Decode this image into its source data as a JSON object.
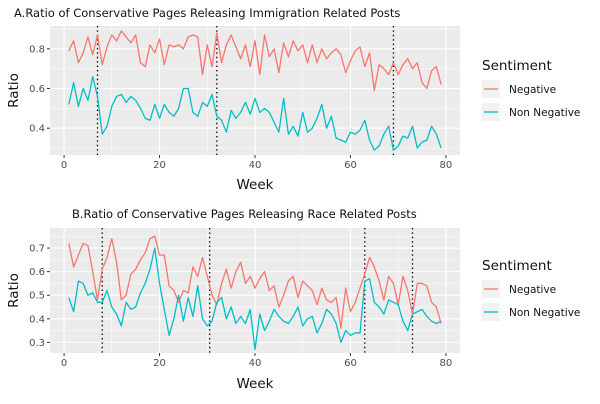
{
  "chart_data": [
    {
      "type": "line",
      "title": "A.Ratio of Conservative Pages Releasing Immigration Related Posts",
      "xlabel": "Week",
      "ylabel": "Ratio",
      "xlim": [
        -2.95,
        82.95
      ],
      "ylim": [
        0.265,
        0.915
      ],
      "x_ticks": [
        0,
        20,
        40,
        60,
        80
      ],
      "y_ticks": [
        0.4,
        0.6,
        0.8
      ],
      "y_tick_labels": [
        "0.4",
        "0.6",
        "0.8"
      ],
      "x_tick_labels": [
        "0",
        "20",
        "40",
        "60",
        "80"
      ],
      "vlines": [
        7,
        32,
        69
      ],
      "grid": true,
      "legend": {
        "title": "Sentiment",
        "placement": "right"
      },
      "x": [
        1,
        2,
        3,
        4,
        5,
        6,
        7,
        8,
        9,
        10,
        11,
        12,
        13,
        14,
        15,
        16,
        17,
        18,
        19,
        20,
        21,
        22,
        23,
        24,
        25,
        26,
        27,
        28,
        29,
        30,
        31,
        32,
        33,
        34,
        35,
        36,
        37,
        38,
        39,
        40,
        41,
        42,
        43,
        44,
        45,
        46,
        47,
        48,
        49,
        50,
        51,
        52,
        53,
        54,
        55,
        56,
        57,
        58,
        59,
        60,
        61,
        62,
        63,
        64,
        65,
        66,
        67,
        68,
        69,
        70,
        71,
        72,
        73,
        74,
        75,
        76,
        77,
        78,
        79
      ],
      "series": [
        {
          "name": "Negative",
          "color": "#F8766D",
          "values": [
            0.79,
            0.84,
            0.73,
            0.78,
            0.86,
            0.77,
            0.87,
            0.72,
            0.81,
            0.87,
            0.84,
            0.89,
            0.86,
            0.83,
            0.87,
            0.73,
            0.71,
            0.82,
            0.78,
            0.85,
            0.72,
            0.82,
            0.81,
            0.82,
            0.8,
            0.86,
            0.87,
            0.86,
            0.67,
            0.82,
            0.71,
            0.88,
            0.73,
            0.82,
            0.87,
            0.81,
            0.75,
            0.82,
            0.71,
            0.84,
            0.67,
            0.87,
            0.76,
            0.8,
            0.68,
            0.83,
            0.76,
            0.84,
            0.79,
            0.82,
            0.73,
            0.82,
            0.73,
            0.8,
            0.75,
            0.78,
            0.8,
            0.77,
            0.68,
            0.74,
            0.79,
            0.81,
            0.71,
            0.78,
            0.59,
            0.72,
            0.7,
            0.67,
            0.73,
            0.67,
            0.72,
            0.75,
            0.7,
            0.73,
            0.63,
            0.6,
            0.69,
            0.71,
            0.62
          ]
        },
        {
          "name": "Non Negative",
          "color": "#00BFC4",
          "values": [
            0.52,
            0.63,
            0.51,
            0.6,
            0.54,
            0.66,
            0.56,
            0.37,
            0.41,
            0.51,
            0.56,
            0.57,
            0.53,
            0.56,
            0.54,
            0.5,
            0.45,
            0.44,
            0.52,
            0.45,
            0.52,
            0.48,
            0.46,
            0.5,
            0.6,
            0.6,
            0.48,
            0.46,
            0.53,
            0.51,
            0.57,
            0.46,
            0.44,
            0.38,
            0.49,
            0.45,
            0.48,
            0.53,
            0.47,
            0.55,
            0.48,
            0.5,
            0.48,
            0.43,
            0.38,
            0.55,
            0.37,
            0.41,
            0.36,
            0.48,
            0.38,
            0.4,
            0.45,
            0.52,
            0.4,
            0.46,
            0.35,
            0.34,
            0.33,
            0.38,
            0.37,
            0.39,
            0.44,
            0.34,
            0.29,
            0.31,
            0.37,
            0.41,
            0.29,
            0.31,
            0.36,
            0.35,
            0.41,
            0.3,
            0.33,
            0.34,
            0.41,
            0.37,
            0.3
          ]
        }
      ]
    },
    {
      "type": "line",
      "title": "B.Ratio of Conservative Pages Releasing Race Related Posts",
      "xlabel": "Week",
      "ylabel": "Ratio",
      "xlim": [
        -2.95,
        82.95
      ],
      "ylim": [
        0.255,
        0.785
      ],
      "x_ticks": [
        0,
        20,
        40,
        60,
        80
      ],
      "y_ticks": [
        0.3,
        0.4,
        0.5,
        0.6,
        0.7
      ],
      "y_tick_labels": [
        "0.3",
        "0.4",
        "0.5",
        "0.6",
        "0.7"
      ],
      "x_tick_labels": [
        "0",
        "20",
        "40",
        "60",
        "80"
      ],
      "vlines": [
        8,
        30.5,
        63,
        73
      ],
      "grid": true,
      "legend": {
        "title": "Sentiment",
        "placement": "right"
      },
      "x": [
        1,
        2,
        3,
        4,
        5,
        6,
        7,
        8,
        9,
        10,
        11,
        12,
        13,
        14,
        15,
        16,
        17,
        18,
        19,
        20,
        21,
        22,
        23,
        24,
        25,
        26,
        27,
        28,
        29,
        30,
        31,
        32,
        33,
        34,
        35,
        36,
        37,
        38,
        39,
        40,
        41,
        42,
        43,
        44,
        45,
        46,
        47,
        48,
        49,
        50,
        51,
        52,
        53,
        54,
        55,
        56,
        57,
        58,
        59,
        60,
        61,
        62,
        63,
        64,
        65,
        66,
        67,
        68,
        69,
        70,
        71,
        72,
        73,
        74,
        75,
        76,
        77,
        78,
        79
      ],
      "series": [
        {
          "name": "Negative",
          "color": "#F8766D",
          "values": [
            0.72,
            0.62,
            0.67,
            0.72,
            0.71,
            0.6,
            0.48,
            0.61,
            0.66,
            0.74,
            0.64,
            0.48,
            0.5,
            0.59,
            0.61,
            0.65,
            0.68,
            0.74,
            0.75,
            0.67,
            0.67,
            0.54,
            0.52,
            0.47,
            0.52,
            0.51,
            0.62,
            0.58,
            0.66,
            0.58,
            0.5,
            0.46,
            0.55,
            0.61,
            0.53,
            0.6,
            0.64,
            0.55,
            0.58,
            0.53,
            0.57,
            0.6,
            0.52,
            0.54,
            0.45,
            0.5,
            0.56,
            0.58,
            0.49,
            0.56,
            0.54,
            0.52,
            0.46,
            0.53,
            0.48,
            0.47,
            0.49,
            0.36,
            0.53,
            0.43,
            0.47,
            0.53,
            0.59,
            0.66,
            0.62,
            0.56,
            0.48,
            0.58,
            0.55,
            0.46,
            0.58,
            0.52,
            0.42,
            0.55,
            0.55,
            0.54,
            0.47,
            0.45,
            0.38
          ]
        },
        {
          "name": "Non Negative",
          "color": "#00BFC4",
          "values": [
            0.49,
            0.43,
            0.56,
            0.55,
            0.5,
            0.51,
            0.47,
            0.47,
            0.52,
            0.45,
            0.42,
            0.37,
            0.47,
            0.44,
            0.45,
            0.51,
            0.55,
            0.61,
            0.7,
            0.55,
            0.44,
            0.33,
            0.4,
            0.5,
            0.39,
            0.49,
            0.41,
            0.54,
            0.4,
            0.37,
            0.39,
            0.47,
            0.49,
            0.4,
            0.45,
            0.38,
            0.41,
            0.38,
            0.44,
            0.27,
            0.42,
            0.35,
            0.39,
            0.44,
            0.41,
            0.39,
            0.38,
            0.41,
            0.45,
            0.37,
            0.4,
            0.41,
            0.34,
            0.38,
            0.44,
            0.42,
            0.38,
            0.3,
            0.35,
            0.33,
            0.34,
            0.34,
            0.56,
            0.57,
            0.47,
            0.45,
            0.42,
            0.48,
            0.47,
            0.46,
            0.39,
            0.35,
            0.42,
            0.43,
            0.44,
            0.41,
            0.39,
            0.38,
            0.39
          ]
        }
      ]
    }
  ]
}
